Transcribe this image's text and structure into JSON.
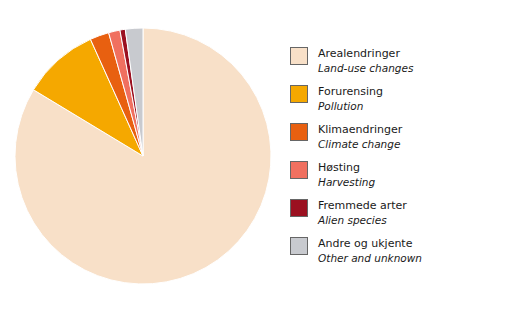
{
  "chart_data": {
    "type": "pie",
    "categories": [
      "Arealendringer",
      "Forurensing",
      "Klimaendringer",
      "Høsting",
      "Fremmede arter",
      "Andre og ukjente"
    ],
    "sublabels": [
      "Land-use changes",
      "Pollution",
      "Climate change",
      "Harvesting",
      "Alien species",
      "Other and unknown"
    ],
    "values": [
      87,
      10,
      2.5,
      1.5,
      0.7,
      2.3
    ],
    "colors": [
      "#F8E0C8",
      "#F5A800",
      "#E86010",
      "#F07060",
      "#9B1020",
      "#C8CACF"
    ],
    "legend": "right"
  }
}
